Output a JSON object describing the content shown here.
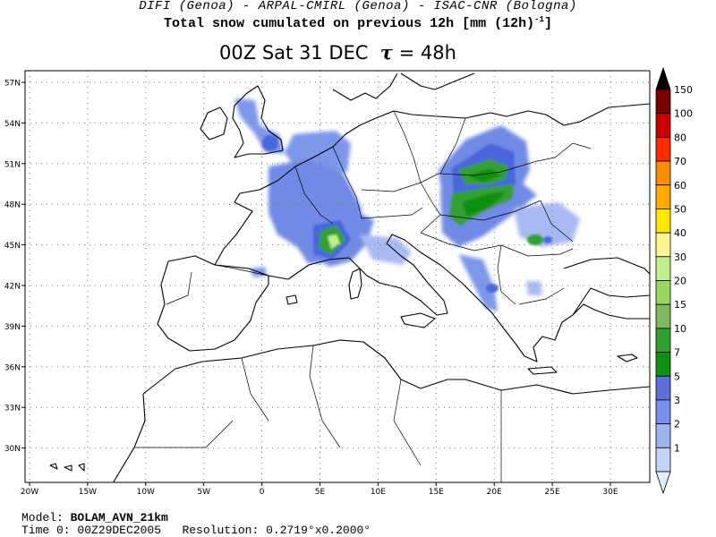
{
  "header": {
    "line1": "DIFI (Genoa)  -  ARPAL-CMIRL (Genoa)  -  ISAC-CNR (Bologna)",
    "line2": "Total snow cumulated on previous 12h [mm (12h)",
    "line2_sup": "-1",
    "line2_end": "]"
  },
  "title": {
    "time": "00Z Sat 31 DEC",
    "tau_symbol": "τ",
    "tau_value": "= 48h"
  },
  "map": {
    "lat_labels": [
      "57N",
      "54N",
      "51N",
      "48N",
      "45N",
      "42N",
      "39N",
      "36N",
      "33N",
      "30N"
    ],
    "lon_labels": [
      "20W",
      "15W",
      "10W",
      "5W",
      "0",
      "5E",
      "10E",
      "15E",
      "20E",
      "25E",
      "30E"
    ]
  },
  "colorbar": {
    "labels": [
      "150",
      "100",
      "80",
      "70",
      "60",
      "50",
      "40",
      "30",
      "20",
      "15",
      "10",
      "7",
      "5",
      "3",
      "2",
      "1"
    ],
    "colors": [
      "#000000",
      "#7a0000",
      "#c80000",
      "#ff2a00",
      "#ff8c00",
      "#ffaa00",
      "#ffe600",
      "#fff690",
      "#c0f090",
      "#98d860",
      "#80b860",
      "#30a030",
      "#109010",
      "#5a70d8",
      "#7890e8",
      "#9eb4f0",
      "#c4d4f8",
      "#e4ecfc"
    ]
  },
  "footer": {
    "model_label": "Model:",
    "model_value": "BOLAM_AVN_21km",
    "time_label": "Time 0:",
    "time_value": "00Z29DEC2005",
    "res_label": "Resolution:",
    "res_value": "0.2719°x0.2000°"
  }
}
